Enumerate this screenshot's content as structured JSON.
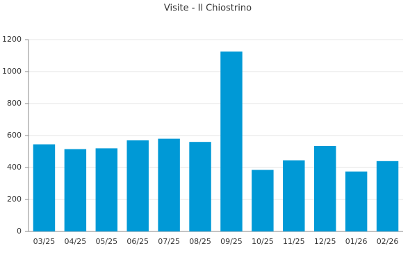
{
  "chart_data": {
    "type": "bar",
    "title": "Visite - Il Chiostrino",
    "categories": [
      "03/25",
      "04/25",
      "05/25",
      "06/25",
      "07/25",
      "08/25",
      "09/25",
      "10/25",
      "11/25",
      "12/25",
      "01/26",
      "02/26"
    ],
    "values": [
      545,
      515,
      520,
      570,
      580,
      560,
      1125,
      385,
      445,
      535,
      375,
      440
    ],
    "color": "#0099d6",
    "ylim": [
      0,
      1200
    ],
    "yticks": [
      0,
      200,
      400,
      600,
      800,
      1000,
      1200
    ],
    "grid": true
  }
}
